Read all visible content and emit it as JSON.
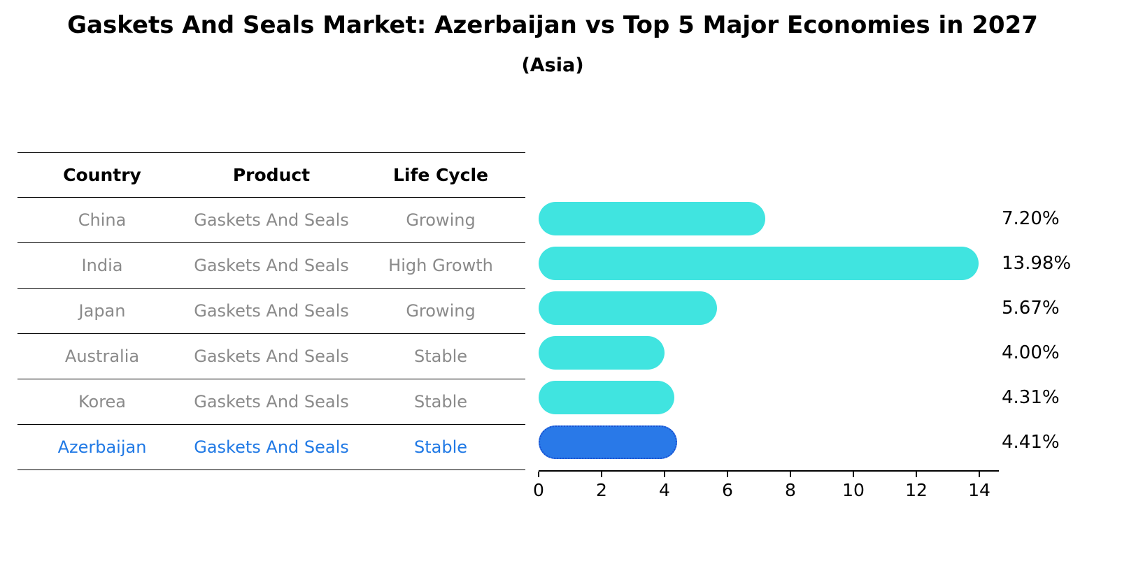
{
  "title": "Gaskets And Seals Market: Azerbaijan vs Top 5 Major Economies in 2027",
  "subtitle": "(Asia)",
  "table": {
    "headers": [
      "Country",
      "Product",
      "Life Cycle"
    ],
    "rows": [
      {
        "country": "China",
        "product": "Gaskets And Seals",
        "life_cycle": "Growing",
        "highlight": false
      },
      {
        "country": "India",
        "product": "Gaskets And Seals",
        "life_cycle": "High Growth",
        "highlight": false
      },
      {
        "country": "Japan",
        "product": "Gaskets And Seals",
        "life_cycle": "Growing",
        "highlight": false
      },
      {
        "country": "Australia",
        "product": "Gaskets And Seals",
        "life_cycle": "Stable",
        "highlight": false
      },
      {
        "country": "Korea",
        "product": "Gaskets And Seals",
        "life_cycle": "Stable",
        "highlight": false
      },
      {
        "country": "Azerbaijan",
        "product": "Gaskets And Seals",
        "life_cycle": "Stable",
        "highlight": true
      }
    ]
  },
  "chart_data": {
    "type": "bar",
    "orientation": "horizontal",
    "categories": [
      "China",
      "India",
      "Japan",
      "Australia",
      "Korea",
      "Azerbaijan"
    ],
    "values": [
      7.2,
      13.98,
      5.67,
      4.0,
      4.31,
      4.41
    ],
    "value_labels": [
      "7.20%",
      "13.98%",
      "5.67%",
      "4.00%",
      "4.31%",
      "4.41%"
    ],
    "xlim": [
      0,
      14.6
    ],
    "xticks": [
      0,
      2,
      4,
      6,
      8,
      10,
      12,
      14
    ],
    "grid": false,
    "legend": false,
    "bar_color": "#40E4E0",
    "highlight_index": 5,
    "highlight_color": "#2979E8",
    "highlight_border_color": "#1A4FD0"
  },
  "colors": {
    "highlight_text": "#2079E5",
    "row_text": "#8A8A8A",
    "axis": "#000000"
  }
}
